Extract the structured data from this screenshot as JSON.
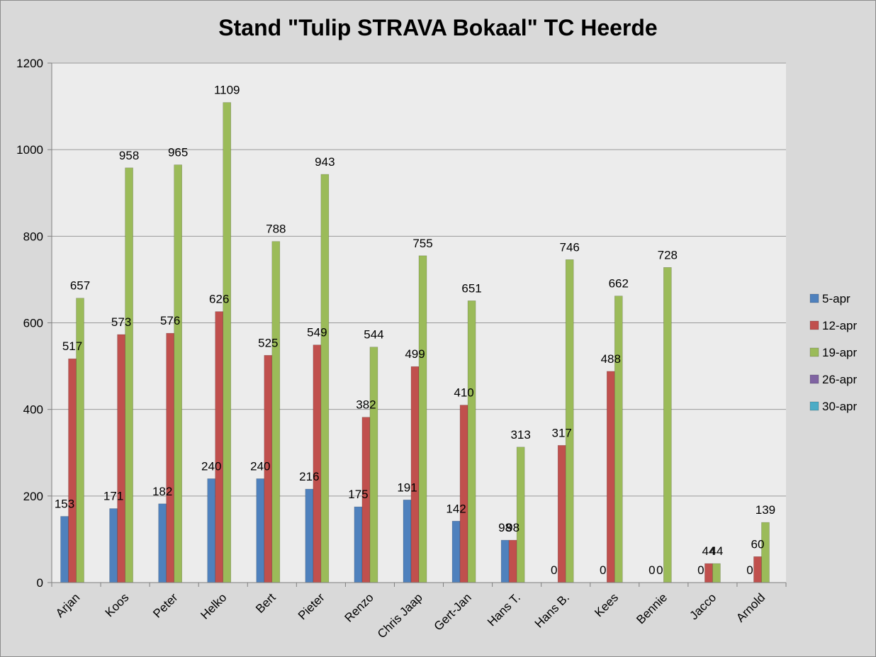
{
  "chart_data": {
    "type": "bar",
    "title": "Stand \"Tulip STRAVA  Bokaal\" TC Heerde",
    "xlabel": "",
    "ylabel": "",
    "ylim": [
      0,
      1200
    ],
    "yticks": [
      0,
      200,
      400,
      600,
      800,
      1000,
      1200
    ],
    "grid": true,
    "legend_position": "right",
    "categories": [
      "Arjan",
      "Koos",
      "Peter",
      "Helko",
      "Bert",
      "Pieter",
      "Renzo",
      "Chris Jaap",
      "Gert-Jan",
      "Hans T.",
      "Hans B.",
      "Kees",
      "Bennie",
      "Jacco",
      "Arnold"
    ],
    "series": [
      {
        "name": "5-apr",
        "color": "#4f81bd",
        "values": [
          153,
          171,
          182,
          240,
          240,
          216,
          175,
          191,
          142,
          98,
          0,
          0,
          0,
          0,
          0
        ]
      },
      {
        "name": "12-apr",
        "color": "#c0504d",
        "values": [
          517,
          573,
          576,
          626,
          525,
          549,
          382,
          499,
          410,
          98,
          317,
          488,
          0,
          44,
          60
        ]
      },
      {
        "name": "19-apr",
        "color": "#9bbb59",
        "values": [
          657,
          958,
          965,
          1109,
          788,
          943,
          544,
          755,
          651,
          313,
          746,
          662,
          728,
          44,
          139
        ]
      },
      {
        "name": "26-apr",
        "color": "#8064a2",
        "values": [
          null,
          null,
          null,
          null,
          null,
          null,
          null,
          null,
          null,
          null,
          null,
          null,
          null,
          null,
          null
        ]
      },
      {
        "name": "30-apr",
        "color": "#4bacc6",
        "values": [
          null,
          null,
          null,
          null,
          null,
          null,
          null,
          null,
          null,
          null,
          null,
          null,
          null,
          null,
          null
        ]
      }
    ]
  }
}
